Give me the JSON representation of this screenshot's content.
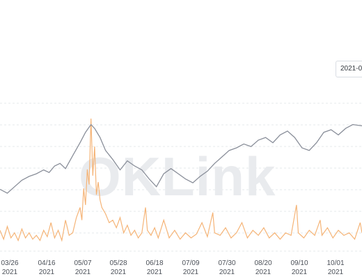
{
  "watermark": "OKLink",
  "date_chip": {
    "label": "2021-0"
  },
  "colors": {
    "price": "#8a8f9a",
    "volume": "#f5b477",
    "grid": "#e6e8eb",
    "axis_text": "#4b5058"
  },
  "chart_data": {
    "type": "line",
    "title": "",
    "xlabel": "",
    "ylabel": "",
    "grid": true,
    "x_ticks": [
      {
        "month_day": "03/26",
        "year": "2021"
      },
      {
        "month_day": "04/16",
        "year": "2021"
      },
      {
        "month_day": "05/07",
        "year": "2021"
      },
      {
        "month_day": "05/28",
        "year": "2021"
      },
      {
        "month_day": "06/18",
        "year": "2021"
      },
      {
        "month_day": "07/09",
        "year": "2021"
      },
      {
        "month_day": "07/30",
        "year": "2021"
      },
      {
        "month_day": "08/20",
        "year": "2021"
      },
      {
        "month_day": "09/10",
        "year": "2021"
      },
      {
        "month_day": "10/01",
        "year": "2021"
      }
    ],
    "x_range": [
      "2021-03-21",
      "2021-10-08"
    ],
    "series": [
      {
        "values": [
          [
            0,
            0.4
          ],
          [
            4,
            0.37
          ],
          [
            8,
            0.42
          ],
          [
            12,
            0.47
          ],
          [
            16,
            0.5
          ],
          [
            20,
            0.52
          ],
          [
            24,
            0.55
          ],
          [
            27,
            0.53
          ],
          [
            30,
            0.58
          ],
          [
            33,
            0.6
          ],
          [
            36,
            0.56
          ],
          [
            40,
            0.66
          ],
          [
            44,
            0.76
          ],
          [
            47,
            0.84
          ],
          [
            50,
            0.9
          ],
          [
            52,
            0.87
          ],
          [
            55,
            0.8
          ],
          [
            58,
            0.7
          ],
          [
            62,
            0.63
          ],
          [
            66,
            0.55
          ],
          [
            70,
            0.62
          ],
          [
            74,
            0.58
          ],
          [
            78,
            0.55
          ],
          [
            82,
            0.48
          ],
          [
            86,
            0.42
          ],
          [
            90,
            0.52
          ],
          [
            94,
            0.56
          ],
          [
            98,
            0.52
          ],
          [
            102,
            0.48
          ],
          [
            106,
            0.45
          ],
          [
            110,
            0.5
          ],
          [
            114,
            0.54
          ],
          [
            118,
            0.6
          ],
          [
            122,
            0.65
          ],
          [
            126,
            0.7
          ],
          [
            130,
            0.72
          ],
          [
            134,
            0.75
          ],
          [
            138,
            0.73
          ],
          [
            142,
            0.78
          ],
          [
            146,
            0.8
          ],
          [
            150,
            0.76
          ],
          [
            154,
            0.82
          ],
          [
            158,
            0.85
          ],
          [
            162,
            0.8
          ],
          [
            166,
            0.72
          ],
          [
            170,
            0.7
          ],
          [
            174,
            0.76
          ],
          [
            178,
            0.84
          ],
          [
            182,
            0.86
          ],
          [
            186,
            0.82
          ],
          [
            190,
            0.87
          ],
          [
            194,
            0.9
          ],
          [
            199,
            0.89
          ]
        ],
        "axis_range": [
          0.3,
          1.0
        ]
      },
      {
        "values": [
          [
            0,
            0.12
          ],
          [
            2,
            0.05
          ],
          [
            4,
            0.15
          ],
          [
            6,
            0.06
          ],
          [
            8,
            0.1
          ],
          [
            10,
            0.04
          ],
          [
            12,
            0.13
          ],
          [
            14,
            0.06
          ],
          [
            16,
            0.1
          ],
          [
            18,
            0.05
          ],
          [
            20,
            0.08
          ],
          [
            22,
            0.04
          ],
          [
            24,
            0.12
          ],
          [
            26,
            0.07
          ],
          [
            28,
            0.18
          ],
          [
            30,
            0.06
          ],
          [
            32,
            0.12
          ],
          [
            34,
            0.04
          ],
          [
            36,
            0.2
          ],
          [
            38,
            0.08
          ],
          [
            40,
            0.1
          ],
          [
            42,
            0.22
          ],
          [
            44,
            0.3
          ],
          [
            45,
            0.2
          ],
          [
            46,
            0.45
          ],
          [
            47,
            0.32
          ],
          [
            48,
            0.6
          ],
          [
            49,
            0.48
          ],
          [
            50,
            1.0
          ],
          [
            51,
            0.55
          ],
          [
            52,
            0.78
          ],
          [
            53,
            0.4
          ],
          [
            54,
            0.5
          ],
          [
            55,
            0.36
          ],
          [
            56,
            0.3
          ],
          [
            58,
            0.25
          ],
          [
            60,
            0.18
          ],
          [
            62,
            0.2
          ],
          [
            64,
            0.14
          ],
          [
            66,
            0.22
          ],
          [
            68,
            0.1
          ],
          [
            70,
            0.16
          ],
          [
            72,
            0.08
          ],
          [
            74,
            0.12
          ],
          [
            76,
            0.06
          ],
          [
            78,
            0.1
          ],
          [
            80,
            0.3
          ],
          [
            81,
            0.12
          ],
          [
            83,
            0.08
          ],
          [
            85,
            0.14
          ],
          [
            87,
            0.06
          ],
          [
            90,
            0.2
          ],
          [
            93,
            0.06
          ],
          [
            96,
            0.12
          ],
          [
            99,
            0.05
          ],
          [
            102,
            0.1
          ],
          [
            105,
            0.06
          ],
          [
            108,
            0.09
          ],
          [
            111,
            0.18
          ],
          [
            114,
            0.07
          ],
          [
            117,
            0.26
          ],
          [
            118,
            0.1
          ],
          [
            121,
            0.08
          ],
          [
            124,
            0.14
          ],
          [
            127,
            0.06
          ],
          [
            130,
            0.1
          ],
          [
            133,
            0.18
          ],
          [
            136,
            0.06
          ],
          [
            139,
            0.12
          ],
          [
            142,
            0.08
          ],
          [
            145,
            0.14
          ],
          [
            148,
            0.06
          ],
          [
            151,
            0.1
          ],
          [
            154,
            0.05
          ],
          [
            157,
            0.1
          ],
          [
            160,
            0.08
          ],
          [
            163,
            0.32
          ],
          [
            164,
            0.1
          ],
          [
            167,
            0.06
          ],
          [
            170,
            0.12
          ],
          [
            173,
            0.08
          ],
          [
            176,
            0.2
          ],
          [
            177,
            0.08
          ],
          [
            180,
            0.14
          ],
          [
            183,
            0.06
          ],
          [
            186,
            0.12
          ],
          [
            189,
            0.08
          ],
          [
            192,
            0.1
          ],
          [
            195,
            0.05
          ],
          [
            198,
            0.18
          ],
          [
            199,
            0.1
          ]
        ],
        "axis_range": [
          0,
          1.0
        ]
      }
    ]
  }
}
